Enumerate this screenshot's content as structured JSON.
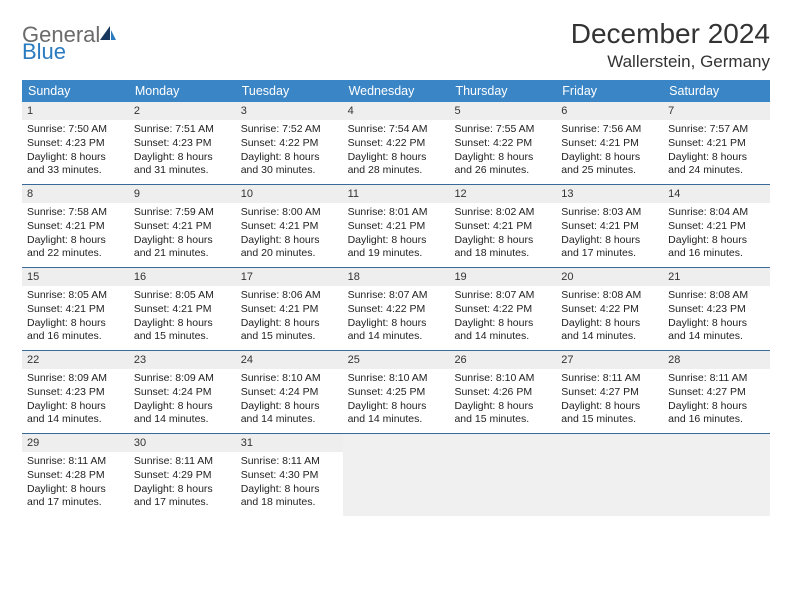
{
  "logo": {
    "general": "General",
    "blue": "Blue"
  },
  "title": "December 2024",
  "location": "Wallerstein, Germany",
  "colors": {
    "header_bg": "#3a85c6",
    "header_text": "#ffffff",
    "daynum_bg": "#eeeeee",
    "row_divider": "#3a6a9a",
    "empty_bg": "#f0f0f0",
    "logo_gray": "#6b6b6b",
    "logo_blue": "#2a7bbf"
  },
  "weekdays": [
    "Sunday",
    "Monday",
    "Tuesday",
    "Wednesday",
    "Thursday",
    "Friday",
    "Saturday"
  ],
  "weeks": [
    [
      {
        "n": "1",
        "sr": "7:50 AM",
        "ss": "4:23 PM",
        "dl": "8 hours and 33 minutes."
      },
      {
        "n": "2",
        "sr": "7:51 AM",
        "ss": "4:23 PM",
        "dl": "8 hours and 31 minutes."
      },
      {
        "n": "3",
        "sr": "7:52 AM",
        "ss": "4:22 PM",
        "dl": "8 hours and 30 minutes."
      },
      {
        "n": "4",
        "sr": "7:54 AM",
        "ss": "4:22 PM",
        "dl": "8 hours and 28 minutes."
      },
      {
        "n": "5",
        "sr": "7:55 AM",
        "ss": "4:22 PM",
        "dl": "8 hours and 26 minutes."
      },
      {
        "n": "6",
        "sr": "7:56 AM",
        "ss": "4:21 PM",
        "dl": "8 hours and 25 minutes."
      },
      {
        "n": "7",
        "sr": "7:57 AM",
        "ss": "4:21 PM",
        "dl": "8 hours and 24 minutes."
      }
    ],
    [
      {
        "n": "8",
        "sr": "7:58 AM",
        "ss": "4:21 PM",
        "dl": "8 hours and 22 minutes."
      },
      {
        "n": "9",
        "sr": "7:59 AM",
        "ss": "4:21 PM",
        "dl": "8 hours and 21 minutes."
      },
      {
        "n": "10",
        "sr": "8:00 AM",
        "ss": "4:21 PM",
        "dl": "8 hours and 20 minutes."
      },
      {
        "n": "11",
        "sr": "8:01 AM",
        "ss": "4:21 PM",
        "dl": "8 hours and 19 minutes."
      },
      {
        "n": "12",
        "sr": "8:02 AM",
        "ss": "4:21 PM",
        "dl": "8 hours and 18 minutes."
      },
      {
        "n": "13",
        "sr": "8:03 AM",
        "ss": "4:21 PM",
        "dl": "8 hours and 17 minutes."
      },
      {
        "n": "14",
        "sr": "8:04 AM",
        "ss": "4:21 PM",
        "dl": "8 hours and 16 minutes."
      }
    ],
    [
      {
        "n": "15",
        "sr": "8:05 AM",
        "ss": "4:21 PM",
        "dl": "8 hours and 16 minutes."
      },
      {
        "n": "16",
        "sr": "8:05 AM",
        "ss": "4:21 PM",
        "dl": "8 hours and 15 minutes."
      },
      {
        "n": "17",
        "sr": "8:06 AM",
        "ss": "4:21 PM",
        "dl": "8 hours and 15 minutes."
      },
      {
        "n": "18",
        "sr": "8:07 AM",
        "ss": "4:22 PM",
        "dl": "8 hours and 14 minutes."
      },
      {
        "n": "19",
        "sr": "8:07 AM",
        "ss": "4:22 PM",
        "dl": "8 hours and 14 minutes."
      },
      {
        "n": "20",
        "sr": "8:08 AM",
        "ss": "4:22 PM",
        "dl": "8 hours and 14 minutes."
      },
      {
        "n": "21",
        "sr": "8:08 AM",
        "ss": "4:23 PM",
        "dl": "8 hours and 14 minutes."
      }
    ],
    [
      {
        "n": "22",
        "sr": "8:09 AM",
        "ss": "4:23 PM",
        "dl": "8 hours and 14 minutes."
      },
      {
        "n": "23",
        "sr": "8:09 AM",
        "ss": "4:24 PM",
        "dl": "8 hours and 14 minutes."
      },
      {
        "n": "24",
        "sr": "8:10 AM",
        "ss": "4:24 PM",
        "dl": "8 hours and 14 minutes."
      },
      {
        "n": "25",
        "sr": "8:10 AM",
        "ss": "4:25 PM",
        "dl": "8 hours and 14 minutes."
      },
      {
        "n": "26",
        "sr": "8:10 AM",
        "ss": "4:26 PM",
        "dl": "8 hours and 15 minutes."
      },
      {
        "n": "27",
        "sr": "8:11 AM",
        "ss": "4:27 PM",
        "dl": "8 hours and 15 minutes."
      },
      {
        "n": "28",
        "sr": "8:11 AM",
        "ss": "4:27 PM",
        "dl": "8 hours and 16 minutes."
      }
    ],
    [
      {
        "n": "29",
        "sr": "8:11 AM",
        "ss": "4:28 PM",
        "dl": "8 hours and 17 minutes."
      },
      {
        "n": "30",
        "sr": "8:11 AM",
        "ss": "4:29 PM",
        "dl": "8 hours and 17 minutes."
      },
      {
        "n": "31",
        "sr": "8:11 AM",
        "ss": "4:30 PM",
        "dl": "8 hours and 18 minutes."
      },
      null,
      null,
      null,
      null
    ]
  ],
  "labels": {
    "sunrise": "Sunrise:",
    "sunset": "Sunset:",
    "daylight": "Daylight:"
  }
}
